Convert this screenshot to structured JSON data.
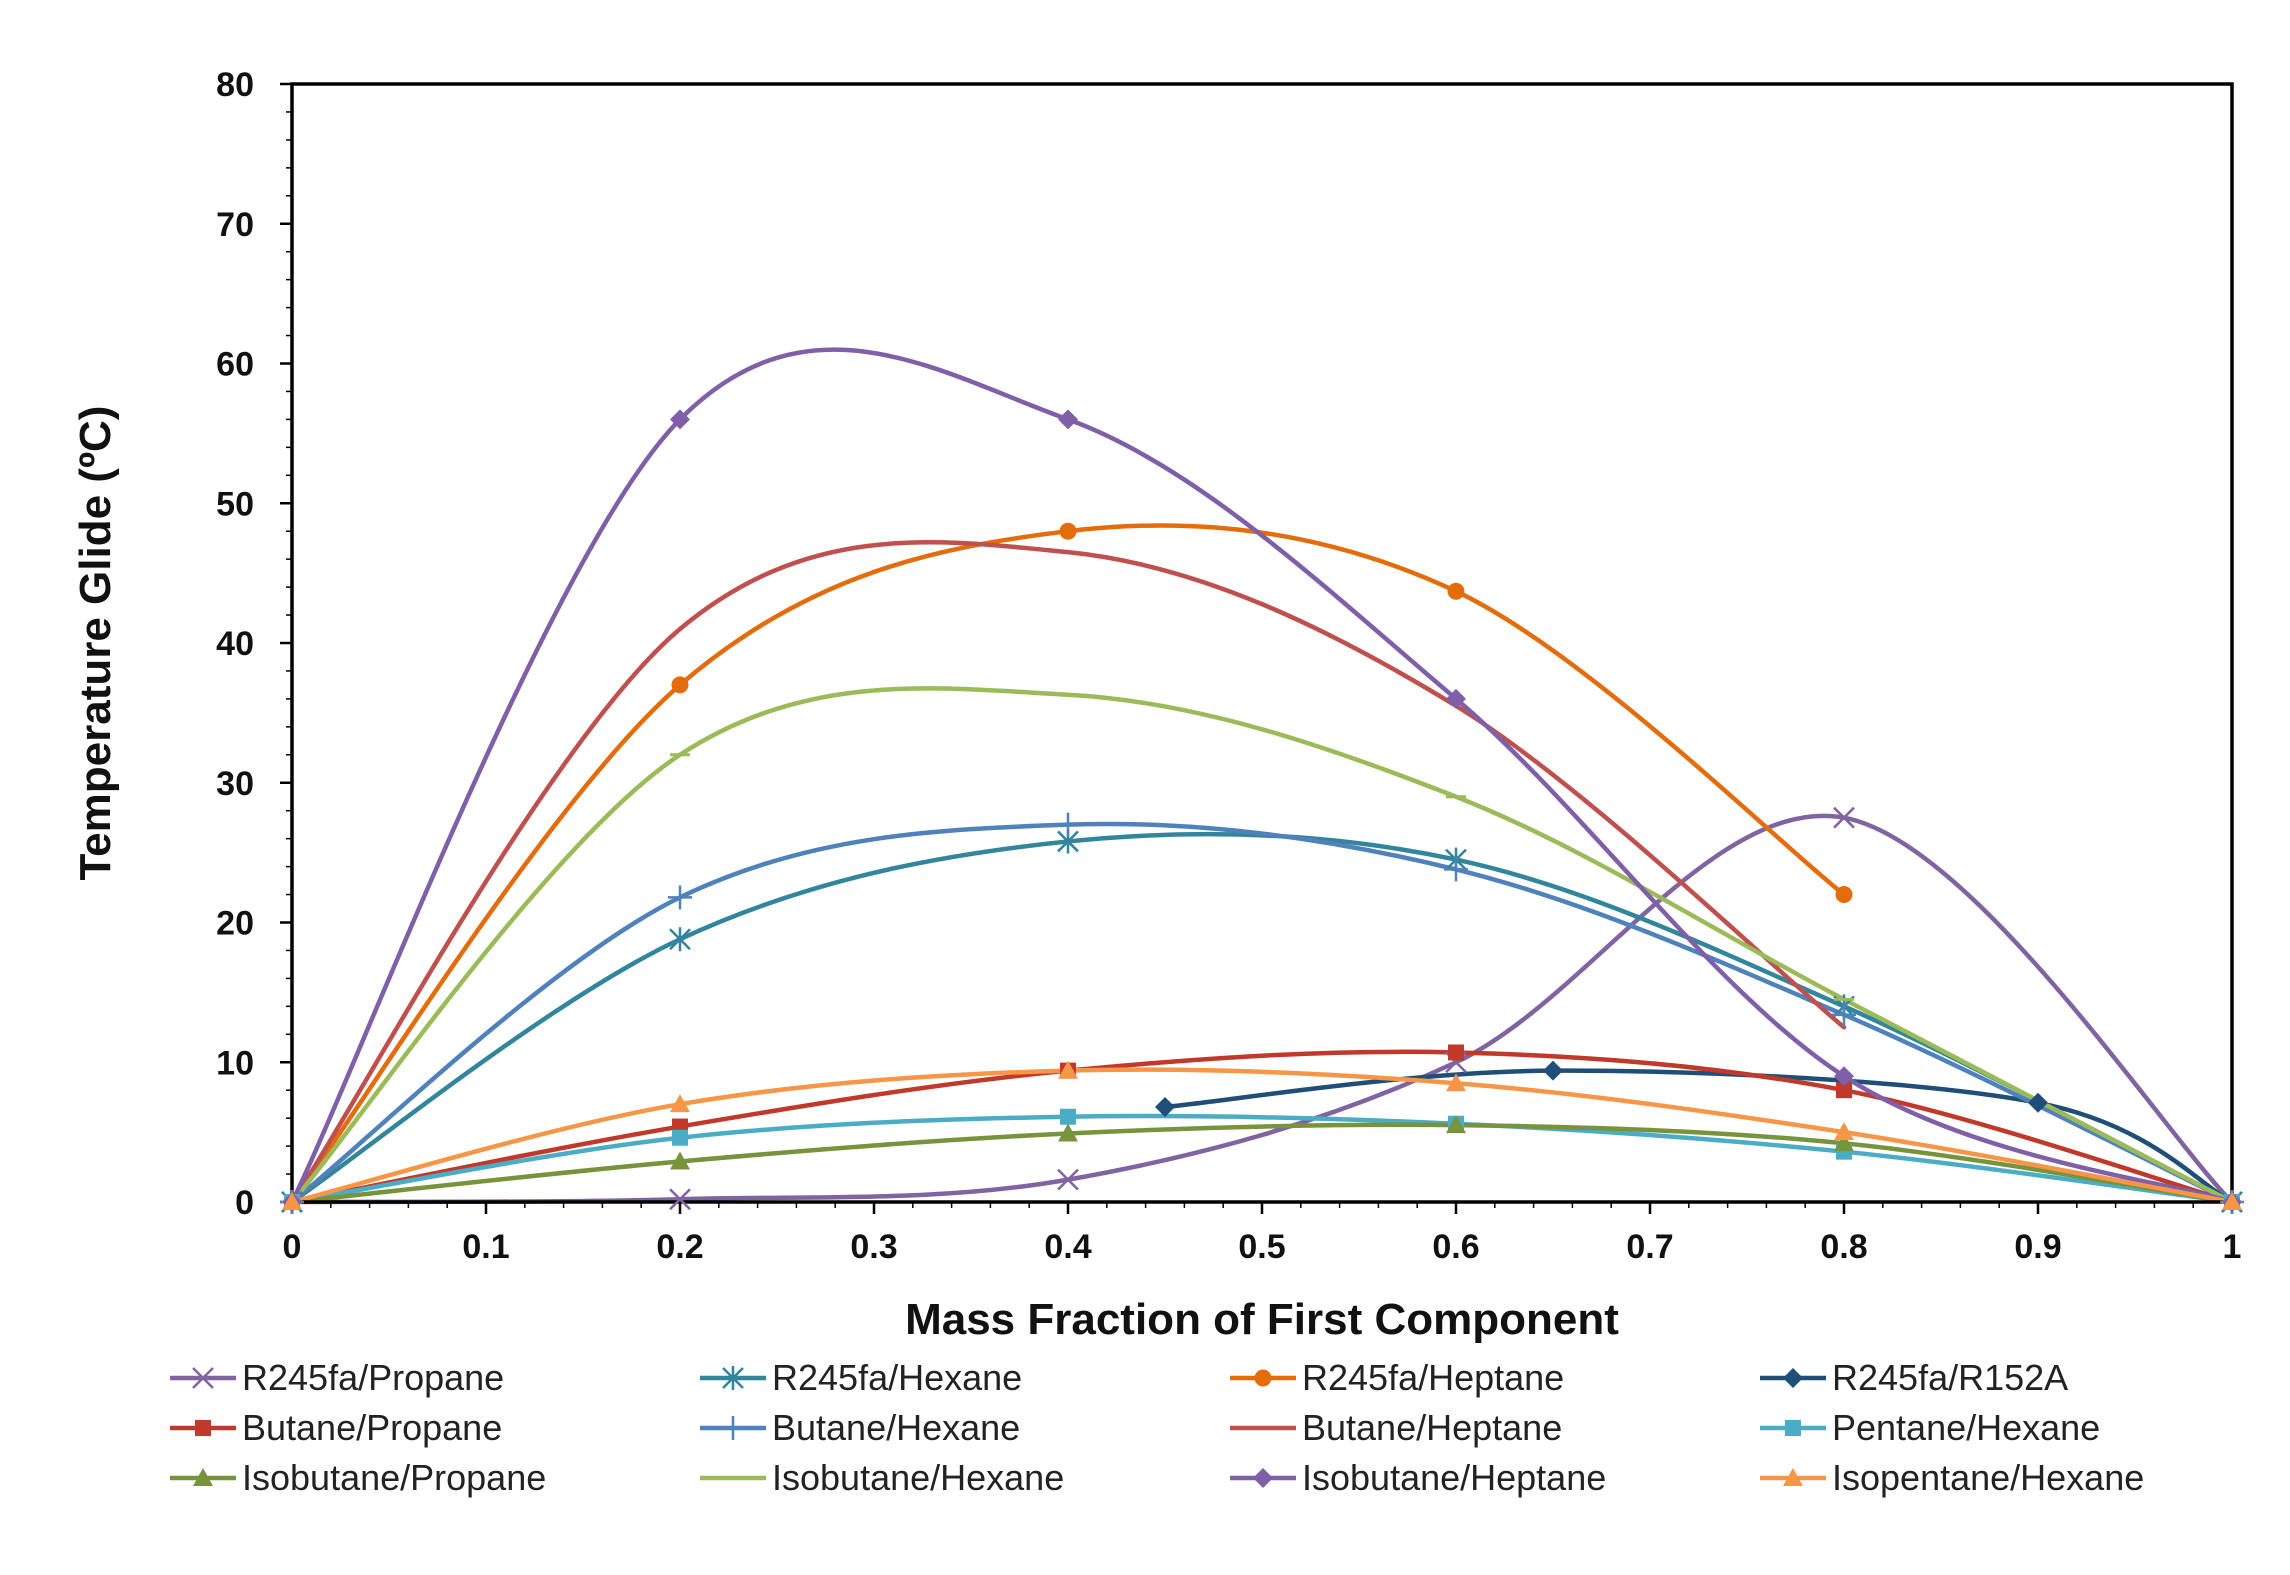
{
  "chart_data": {
    "type": "line",
    "title": "",
    "xlabel": "Mass Fraction of First Component",
    "ylabel": "Temperature Glide (ºC)",
    "xlim": [
      0,
      1
    ],
    "ylim": [
      0,
      80
    ],
    "x_ticks": [
      "0",
      "0.1",
      "0.2",
      "0.3",
      "0.4",
      "0.5",
      "0.6",
      "0.7",
      "0.8",
      "0.9",
      "1"
    ],
    "y_ticks": [
      "0",
      "10",
      "20",
      "30",
      "40",
      "50",
      "60",
      "70",
      "80"
    ],
    "grid": false,
    "legend_position": "bottom",
    "series": [
      {
        "name": "R245fa/Propane",
        "color": "#8064A2",
        "marker": "x",
        "x": [
          0,
          0.2,
          0.4,
          0.6,
          0.8,
          1
        ],
        "y": [
          0,
          0.2,
          1.6,
          10,
          27.5,
          0
        ]
      },
      {
        "name": "R245fa/Hexane",
        "color": "#31859C",
        "marker": "asterisk",
        "x": [
          0,
          0.2,
          0.4,
          0.6,
          0.8,
          1
        ],
        "y": [
          0,
          18.8,
          25.8,
          24.5,
          14,
          0
        ]
      },
      {
        "name": "R245fa/Heptane",
        "color": "#E46C0A",
        "marker": "circle",
        "x": [
          0,
          0.2,
          0.4,
          0.6,
          0.8
        ],
        "y": [
          0,
          37,
          48,
          43.7,
          22
        ]
      },
      {
        "name": "R245fa/R152A",
        "color": "#1F4E79",
        "marker": "diamond",
        "x": [
          0.45,
          0.65,
          0.9,
          1
        ],
        "y": [
          6.8,
          9.4,
          7.1,
          0
        ]
      },
      {
        "name": "Butane/Propane",
        "color": "#C0392B",
        "marker": "square",
        "x": [
          0,
          0.2,
          0.4,
          0.6,
          0.8,
          1
        ],
        "y": [
          0,
          5.4,
          9.4,
          10.7,
          8,
          0
        ]
      },
      {
        "name": "Butane/Hexane",
        "color": "#4F81BD",
        "marker": "plus",
        "x": [
          0,
          0.2,
          0.4,
          0.6,
          0.8,
          1
        ],
        "y": [
          0,
          21.8,
          27,
          23.8,
          13.4,
          0
        ]
      },
      {
        "name": "Butane/Heptane",
        "color": "#C0504D",
        "marker": "none",
        "x": [
          0,
          0.2,
          0.4,
          0.6,
          0.8
        ],
        "y": [
          0,
          41,
          46.5,
          35.5,
          12.5
        ]
      },
      {
        "name": "Pentane/Hexane",
        "color": "#4BACC6",
        "marker": "square",
        "x": [
          0,
          0.2,
          0.4,
          0.6,
          0.8,
          1
        ],
        "y": [
          0,
          4.6,
          6.1,
          5.6,
          3.6,
          0
        ]
      },
      {
        "name": "Isobutane/Propane",
        "color": "#77933C",
        "marker": "triangle",
        "x": [
          0,
          0.2,
          0.4,
          0.6,
          0.8,
          1
        ],
        "y": [
          0,
          2.9,
          4.9,
          5.5,
          4.2,
          0
        ]
      },
      {
        "name": "Isobutane/Hexane",
        "color": "#9BBB59",
        "marker": "dash",
        "x": [
          0,
          0.2,
          0.4,
          0.6,
          0.8,
          1
        ],
        "y": [
          0,
          32,
          36.3,
          29,
          14.5,
          0
        ]
      },
      {
        "name": "Isobutane/Heptane",
        "color": "#7F5FA8",
        "marker": "diamond",
        "x": [
          0,
          0.2,
          0.4,
          0.6,
          0.8,
          1
        ],
        "y": [
          0,
          56,
          56,
          36,
          9,
          0
        ]
      },
      {
        "name": "Isopentane/Hexane",
        "color": "#F79646",
        "marker": "triangle",
        "x": [
          0,
          0.2,
          0.4,
          0.6,
          0.8,
          1
        ],
        "y": [
          0,
          7,
          9.4,
          8.5,
          5,
          0
        ]
      }
    ]
  }
}
